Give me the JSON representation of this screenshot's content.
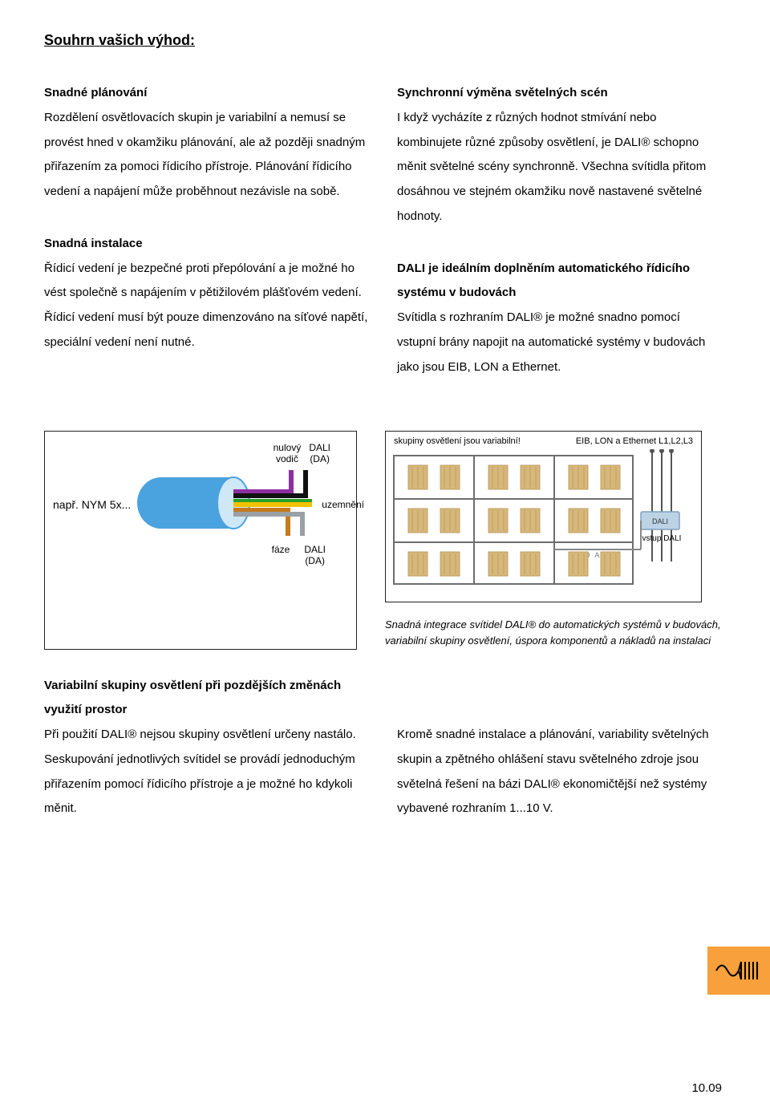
{
  "title": "Souhrn vašich výhod:",
  "left": {
    "h1": "Snadné plánování",
    "p1": "Rozdělení osvětlovacích skupin je variabilní a nemusí se provést hned v okamžiku plánování, ale až později snadným přiřazením za pomoci řídicího přístroje. Plánování řídicího vedení a napájení může proběhnout nezávisle na sobě.",
    "h2": "Snadná instalace",
    "p2": "Řídicí vedení je bezpečné proti přepólování a je možné ho vést společně s napájením v pětižilovém plášťovém vedení. Řídicí vedení musí být pouze dimenzováno na síťové napětí, speciální vedení není nutné."
  },
  "right": {
    "h1": "Synchronní výměna světelných scén",
    "p1": "I když vycházíte z různých hodnot stmívání nebo kombinujete různé způsoby osvětlení, je DALI® schopno měnit světelné scény synchronně. Všechna svítidla přitom dosáhnou ve stejném okamžiku nově nastavené světelné hodnoty.",
    "h2": "DALI je ideálním doplněním automatického řídicího systému v budovách",
    "p2": "Svítidla s rozhraním DALI® je možné snadno pomocí vstupní brány napojit na automatické systémy v budovách jako jsou EIB, LON a Ethernet."
  },
  "cable": {
    "top_label1": "nulový\nvodič",
    "top_label2": "DALI\n(DA)",
    "left_label": "např. NYM 5x...",
    "right_label": "uzemnění",
    "bot_label1": "fáze",
    "bot_label2": "DALI\n(DA)",
    "colors": {
      "sheath_fill": "#4aa3df",
      "sheath_face": "#cfe8f6",
      "n": "#8d2fa0",
      "da1": "#111111",
      "pe_g": "#2aa02a",
      "pe_y": "#f2c200",
      "l": "#c67a1d",
      "da2": "#9aa0a5"
    }
  },
  "bldg": {
    "head_left": "skupiny osvětlení jsou variabilní!",
    "head_right": "EIB, LON a Ethernet  L1,L2,L3",
    "dali_box": "DALI",
    "label_dali": "D A L I",
    "label_vstup": "vstup DALI",
    "caption": "Snadná integrace svítidel DALI® do automatických systémů v budovách, variabilní skupiny osvětlení, úspora komponentů a nákladů na instalaci",
    "colors": {
      "grid": "#9aa0a5",
      "frame": "#6d6d6d",
      "fixture": "#d7b77a",
      "fixture_border": "#bda066",
      "dali_box_fill": "#bcd3e6",
      "dali_box_border": "#7fa0bd"
    }
  },
  "bottom": {
    "left_h": "Variabilní skupiny osvětlení při pozdějších změnách využití prostor",
    "left_p": "Při použití DALI® nejsou skupiny osvětlení určeny nastálo. Seskupování jednotlivých svítidel se provádí jednoduchým přiřazením pomocí řídicího přístroje a je možné ho kdykoli měnit.",
    "right_p": "Kromě snadné instalace a plánování, variability světelných skupin a zpětného ohlášení stavu světelného zdroje jsou světelná řešení na bázi DALI® ekonomičtější než systémy vybavené rozhraním 1...10 V."
  },
  "page_num": "10.09",
  "icon_bg": "#f7a03c"
}
